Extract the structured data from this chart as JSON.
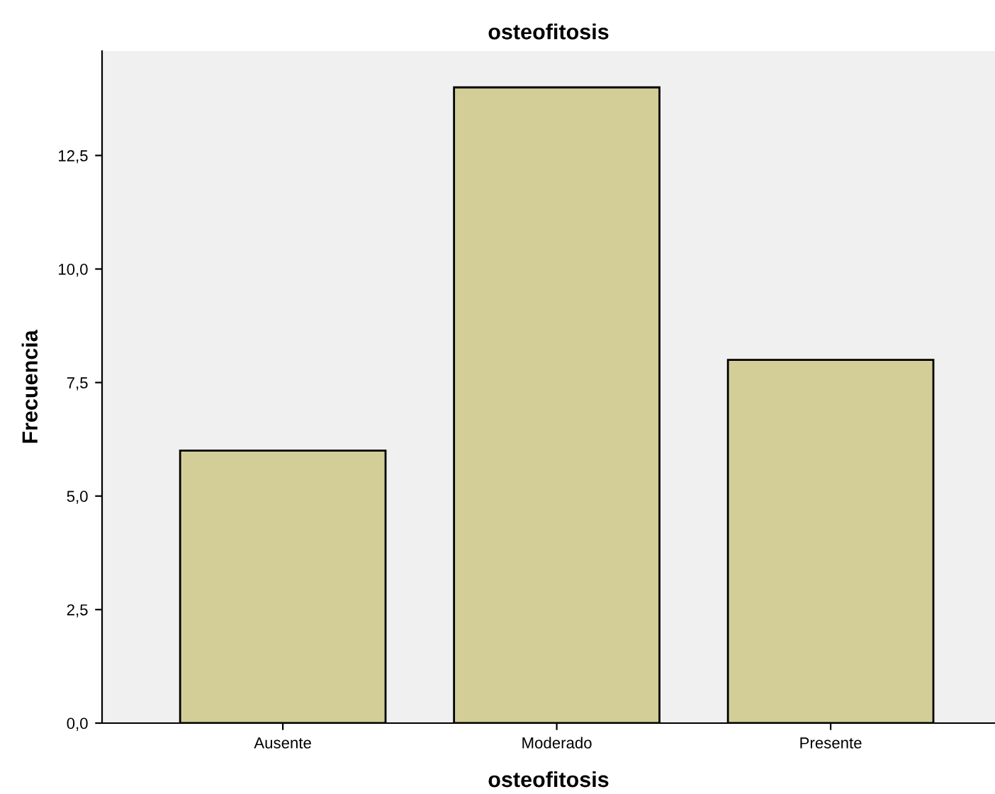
{
  "chart_data": {
    "type": "bar",
    "title": "osteofitosis",
    "xlabel": "osteofitosis",
    "ylabel": "Frecuencia",
    "categories": [
      "Ausente",
      "Moderado",
      "Presente"
    ],
    "values": [
      6,
      14,
      8
    ],
    "color": "#d3ce98",
    "ylim": [
      0,
      14.8
    ],
    "yticks": [
      {
        "value": 0,
        "label": "0,0"
      },
      {
        "value": 2.5,
        "label": "2,5"
      },
      {
        "value": 5,
        "label": "5,0"
      },
      {
        "value": 7.5,
        "label": "7,5"
      },
      {
        "value": 10,
        "label": "10,0"
      },
      {
        "value": 12.5,
        "label": "12,5"
      }
    ],
    "grid": false
  }
}
